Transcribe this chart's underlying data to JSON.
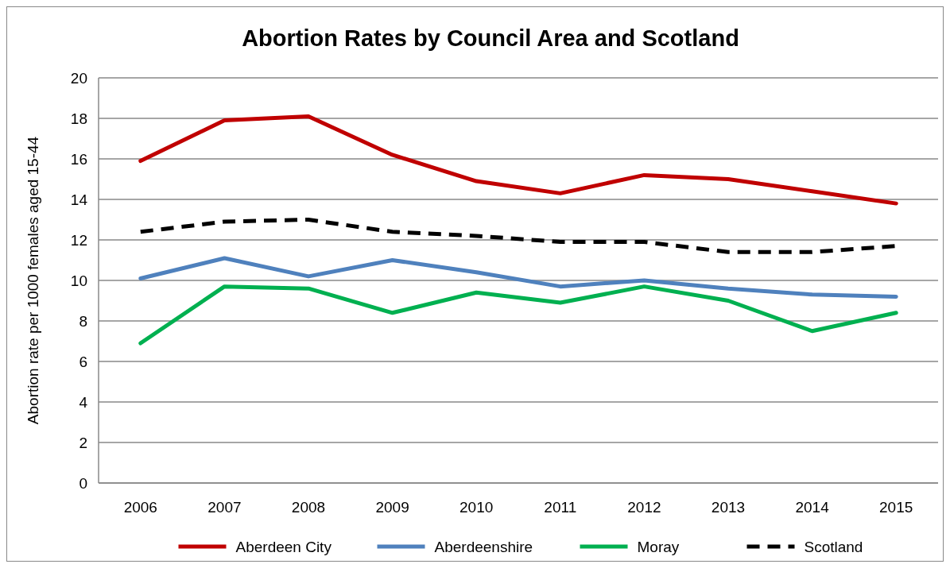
{
  "chart_data": {
    "type": "line",
    "title": "Abortion Rates by Council Area and Scotland",
    "ylabel": "Abortion rate per 1000 females aged 15-44",
    "categories": [
      "2006",
      "2007",
      "2008",
      "2009",
      "2010",
      "2011",
      "2012",
      "2013",
      "2014",
      "2015"
    ],
    "series": [
      {
        "name": "Aberdeen City",
        "color": "#c00000",
        "values": [
          15.9,
          17.9,
          18.1,
          16.2,
          14.9,
          14.3,
          15.2,
          15.0,
          14.4,
          13.8
        ]
      },
      {
        "name": "Aberdeenshire",
        "color": "#4f81bd",
        "values": [
          10.1,
          11.1,
          10.2,
          11.0,
          10.4,
          9.7,
          10.0,
          9.6,
          9.3,
          9.2
        ]
      },
      {
        "name": "Moray",
        "color": "#00b050",
        "values": [
          6.9,
          9.7,
          9.6,
          8.4,
          9.4,
          8.9,
          9.7,
          9.0,
          7.5,
          8.4
        ]
      },
      {
        "name": "Scotland",
        "color": "#000000",
        "line_style": "dashed",
        "values": [
          12.4,
          12.9,
          13.0,
          12.4,
          12.2,
          11.9,
          11.9,
          11.4,
          11.4,
          11.7
        ]
      }
    ],
    "ylim": [
      0,
      20
    ],
    "yticks": [
      0,
      2,
      4,
      6,
      8,
      10,
      12,
      14,
      16,
      18,
      20
    ],
    "grid": "y",
    "legend": "bottom",
    "marker": "none",
    "line_style": "solid"
  }
}
